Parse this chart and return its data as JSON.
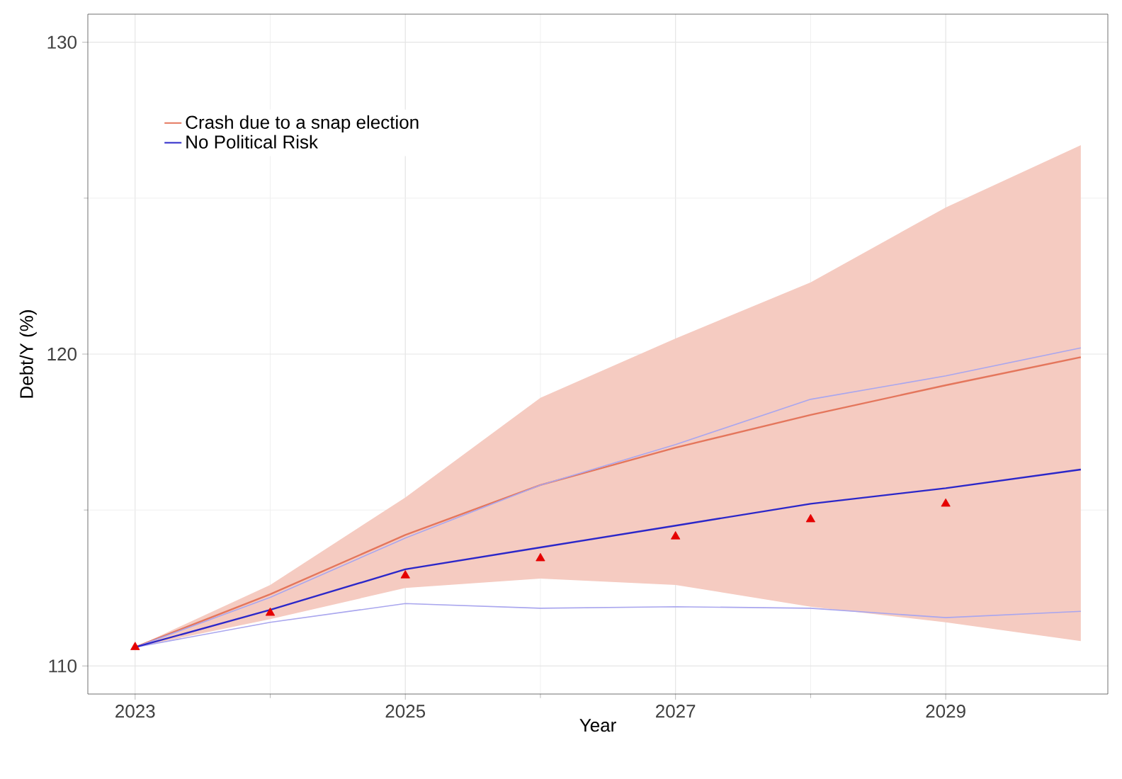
{
  "chart_data": {
    "type": "line",
    "xlabel": "Year",
    "ylabel": "Debt/Y (%)",
    "x": [
      2023,
      2024,
      2025,
      2026,
      2027,
      2028,
      2029,
      2030
    ],
    "xlim": [
      2022.65,
      2030.2
    ],
    "ylim": [
      109.1,
      130.9
    ],
    "xticks": [
      2023,
      2025,
      2027,
      2029
    ],
    "yticks": [
      110,
      120,
      130
    ],
    "grid": true,
    "legend": "top left",
    "line_style": "solid",
    "series": [
      {
        "name": "Crash due to a snap election",
        "color": "#e4765c",
        "values": [
          110.6,
          112.3,
          114.2,
          115.8,
          117.0,
          118.05,
          119.0,
          119.9
        ],
        "lower": [
          110.6,
          111.5,
          112.5,
          112.8,
          112.6,
          111.9,
          111.4,
          110.8
        ],
        "upper": [
          110.6,
          112.6,
          115.4,
          118.6,
          120.5,
          122.3,
          124.7,
          126.7
        ]
      },
      {
        "color": "#a9a6ee",
        "values": [
          110.6,
          112.2,
          114.1,
          115.8,
          117.1,
          118.55,
          119.3,
          120.2
        ]
      },
      {
        "color": "#a9a6ee",
        "values": [
          110.6,
          111.4,
          112.0,
          111.85,
          111.9,
          111.85,
          111.55,
          111.75
        ]
      },
      {
        "name": "No Political Risk",
        "color": "#2b27c9",
        "values": [
          110.6,
          111.8,
          113.1,
          113.8,
          114.5,
          115.2,
          115.7,
          116.3
        ]
      },
      {
        "type": "scatter",
        "marker": "triangle",
        "color": "#e50000",
        "x": [
          2023,
          2024,
          2025,
          2026,
          2027,
          2028,
          2029
        ],
        "values": [
          110.6,
          111.7,
          112.9,
          113.45,
          114.15,
          114.7,
          115.2
        ]
      }
    ]
  }
}
